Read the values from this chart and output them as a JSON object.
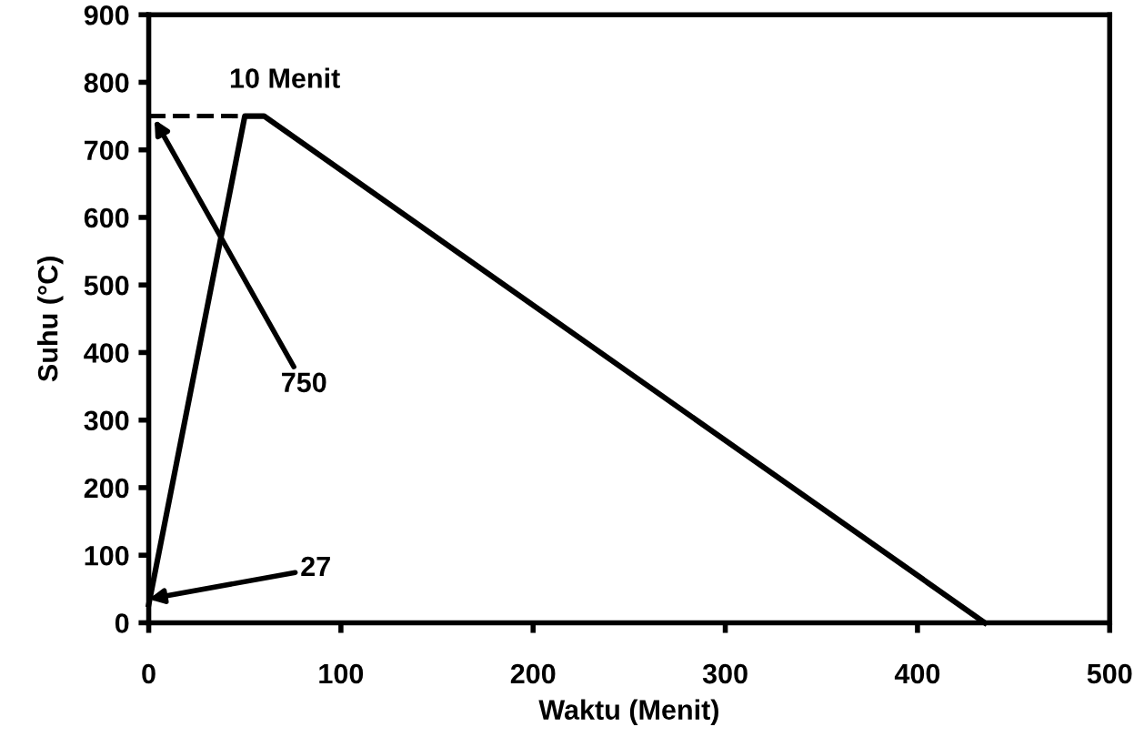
{
  "chart_data": {
    "type": "line",
    "xlabel": "Waktu (Menit)",
    "ylabel": "Suhu (°C)",
    "series": [
      {
        "x": [
          0,
          50,
          60,
          435
        ],
        "values": [
          27,
          750,
          750,
          0
        ],
        "color": "#000000",
        "line_style": "solid"
      },
      {
        "x": [
          0,
          50
        ],
        "values": [
          750,
          750
        ],
        "color": "#000000",
        "line_style": "dashed"
      }
    ],
    "annotations": [
      {
        "text": "10 Menit",
        "x": 55,
        "y": 750
      },
      {
        "text": "750",
        "x": 3,
        "y": 745
      },
      {
        "text": "27",
        "x": 0,
        "y": 35
      }
    ],
    "xlim": [
      0,
      500
    ],
    "xticks": [
      0,
      100,
      200,
      300,
      400,
      500
    ],
    "ylim": [
      0,
      900
    ],
    "yticks": [
      0,
      100,
      200,
      300,
      400,
      500,
      600,
      700,
      800,
      900
    ],
    "grid": false,
    "legend": false,
    "marker": "none"
  }
}
